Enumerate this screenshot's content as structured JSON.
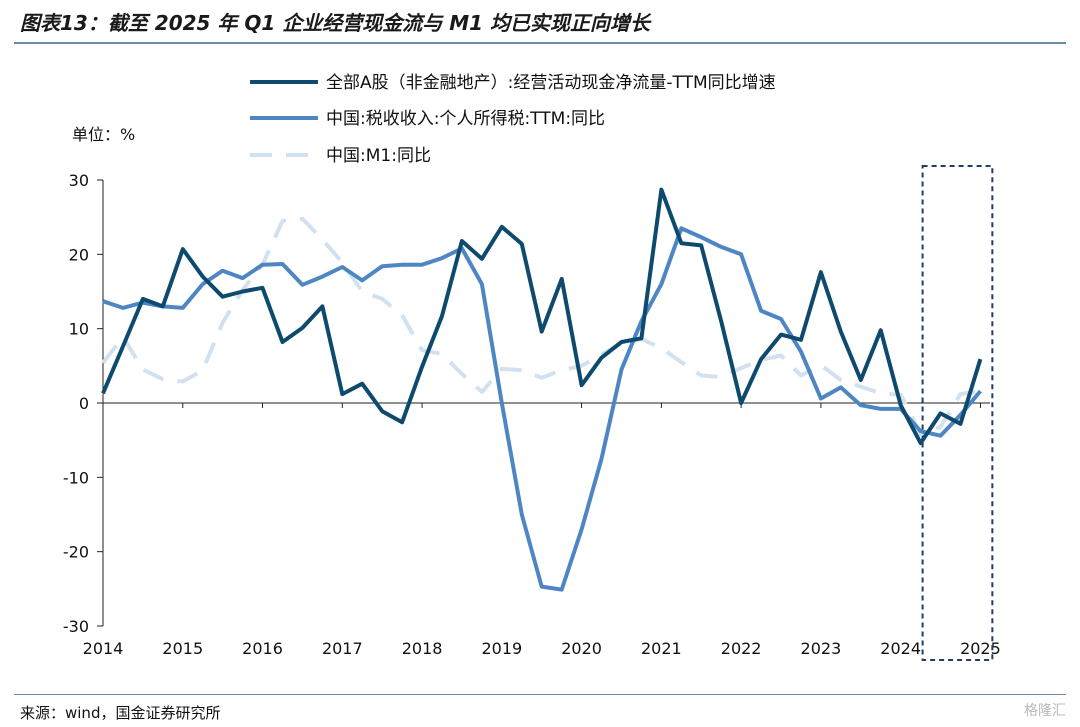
{
  "header": {
    "title": "图表13：截至 2025 年 Q1 企业经营现金流与 M1 均已实现正向增长"
  },
  "footer": {
    "source": "来源：wind，国金证券研究所",
    "watermark": "格隆汇"
  },
  "chart_data": {
    "type": "line",
    "unit_label": "单位：%",
    "ylim": [
      -30,
      30
    ],
    "y_ticks": [
      30,
      20,
      10,
      0,
      -10,
      -20,
      -30
    ],
    "xlim": [
      2014,
      2025.1
    ],
    "x_ticks": [
      2014,
      2015,
      2016,
      2017,
      2018,
      2019,
      2020,
      2021,
      2022,
      2023,
      2024,
      2025
    ],
    "grid": false,
    "legend_position": "top",
    "highlight_box": {
      "x_start": 2024.25,
      "x_end": 2025.35
    },
    "series": [
      {
        "name": "全部A股（非金融地产）:经营活动现金净流量-TTM同比增速",
        "color": "#0e4a6e",
        "style": "solid",
        "points": [
          [
            2014.0,
            1.3
          ],
          [
            2014.25,
            7.6
          ],
          [
            2014.5,
            14.0
          ],
          [
            2014.75,
            13.0
          ],
          [
            2015.0,
            20.7
          ],
          [
            2015.25,
            17.0
          ],
          [
            2015.5,
            14.3
          ],
          [
            2015.75,
            15.0
          ],
          [
            2016.0,
            15.5
          ],
          [
            2016.25,
            8.2
          ],
          [
            2016.5,
            10.1
          ],
          [
            2016.75,
            13.0
          ],
          [
            2017.0,
            1.2
          ],
          [
            2017.25,
            2.6
          ],
          [
            2017.5,
            -1.1
          ],
          [
            2017.75,
            -2.6
          ],
          [
            2018.0,
            4.9
          ],
          [
            2018.25,
            11.7
          ],
          [
            2018.5,
            21.8
          ],
          [
            2018.75,
            19.4
          ],
          [
            2019.0,
            23.7
          ],
          [
            2019.25,
            21.4
          ],
          [
            2019.5,
            9.6
          ],
          [
            2019.75,
            16.7
          ],
          [
            2020.0,
            2.4
          ],
          [
            2020.25,
            6.1
          ],
          [
            2020.5,
            8.2
          ],
          [
            2020.75,
            8.7
          ],
          [
            2021.0,
            28.7
          ],
          [
            2021.25,
            21.5
          ],
          [
            2021.5,
            21.2
          ],
          [
            2021.75,
            11.0
          ],
          [
            2022.0,
            0.0
          ],
          [
            2022.25,
            5.9
          ],
          [
            2022.5,
            9.2
          ],
          [
            2022.75,
            8.5
          ],
          [
            2023.0,
            17.6
          ],
          [
            2023.25,
            9.6
          ],
          [
            2023.5,
            3.1
          ],
          [
            2023.75,
            9.8
          ],
          [
            2024.0,
            -0.3
          ],
          [
            2024.25,
            -5.4
          ],
          [
            2024.5,
            -1.4
          ],
          [
            2024.75,
            -2.8
          ],
          [
            2025.0,
            5.9
          ]
        ]
      },
      {
        "name": "中国:税收收入:个人所得税:TTM:同比",
        "color": "#4e86c4",
        "style": "solid",
        "points": [
          [
            2014.0,
            13.7
          ],
          [
            2014.25,
            12.8
          ],
          [
            2014.5,
            13.5
          ],
          [
            2014.75,
            13.0
          ],
          [
            2015.0,
            12.8
          ],
          [
            2015.25,
            16.0
          ],
          [
            2015.5,
            17.8
          ],
          [
            2015.75,
            16.8
          ],
          [
            2016.0,
            18.6
          ],
          [
            2016.25,
            18.7
          ],
          [
            2016.5,
            15.9
          ],
          [
            2016.75,
            17.0
          ],
          [
            2017.0,
            18.3
          ],
          [
            2017.25,
            16.5
          ],
          [
            2017.5,
            18.4
          ],
          [
            2017.75,
            18.6
          ],
          [
            2018.0,
            18.6
          ],
          [
            2018.25,
            19.5
          ],
          [
            2018.5,
            20.8
          ],
          [
            2018.75,
            16.0
          ],
          [
            2019.0,
            0.0
          ],
          [
            2019.25,
            -15.0
          ],
          [
            2019.5,
            -24.7
          ],
          [
            2019.75,
            -25.1
          ],
          [
            2020.0,
            -17.0
          ],
          [
            2020.25,
            -7.5
          ],
          [
            2020.5,
            4.5
          ],
          [
            2020.75,
            11.0
          ],
          [
            2021.0,
            16.0
          ],
          [
            2021.25,
            23.5
          ],
          [
            2021.5,
            22.3
          ],
          [
            2021.75,
            21.0
          ],
          [
            2022.0,
            20.0
          ],
          [
            2022.25,
            12.4
          ],
          [
            2022.5,
            11.3
          ],
          [
            2022.75,
            6.9
          ],
          [
            2023.0,
            0.6
          ],
          [
            2023.25,
            2.1
          ],
          [
            2023.5,
            -0.3
          ],
          [
            2023.75,
            -0.8
          ],
          [
            2024.0,
            -0.8
          ],
          [
            2024.25,
            -3.8
          ],
          [
            2024.5,
            -4.4
          ],
          [
            2024.75,
            -1.6
          ],
          [
            2025.0,
            1.6
          ]
        ]
      },
      {
        "name": "中国:M1:同比",
        "color": "#d2e1ef",
        "style": "dashed",
        "points": [
          [
            2014.0,
            5.4
          ],
          [
            2014.25,
            8.9
          ],
          [
            2014.5,
            4.5
          ],
          [
            2014.75,
            3.2
          ],
          [
            2015.0,
            2.9
          ],
          [
            2015.25,
            4.4
          ],
          [
            2015.5,
            10.8
          ],
          [
            2015.75,
            15.2
          ],
          [
            2016.0,
            18.6
          ],
          [
            2016.25,
            24.5
          ],
          [
            2016.5,
            24.8
          ],
          [
            2016.75,
            22.0
          ],
          [
            2017.0,
            18.9
          ],
          [
            2017.25,
            15.0
          ],
          [
            2017.5,
            14.0
          ],
          [
            2017.75,
            11.8
          ],
          [
            2018.0,
            7.1
          ],
          [
            2018.25,
            6.6
          ],
          [
            2018.5,
            3.9
          ],
          [
            2018.75,
            1.5
          ],
          [
            2019.0,
            4.6
          ],
          [
            2019.25,
            4.4
          ],
          [
            2019.5,
            3.4
          ],
          [
            2019.75,
            4.4
          ],
          [
            2020.0,
            5.0
          ],
          [
            2020.25,
            6.5
          ],
          [
            2020.5,
            8.1
          ],
          [
            2020.75,
            8.6
          ],
          [
            2021.0,
            7.4
          ],
          [
            2021.25,
            5.5
          ],
          [
            2021.5,
            3.7
          ],
          [
            2021.75,
            3.5
          ],
          [
            2022.0,
            4.7
          ],
          [
            2022.25,
            5.8
          ],
          [
            2022.5,
            6.4
          ],
          [
            2022.75,
            3.7
          ],
          [
            2023.0,
            5.1
          ],
          [
            2023.25,
            3.1
          ],
          [
            2023.5,
            2.2
          ],
          [
            2023.75,
            1.3
          ],
          [
            2024.0,
            1.1
          ],
          [
            2024.25,
            -4.2
          ],
          [
            2024.5,
            -3.2
          ],
          [
            2024.75,
            1.2
          ],
          [
            2025.0,
            1.6
          ]
        ]
      }
    ]
  }
}
